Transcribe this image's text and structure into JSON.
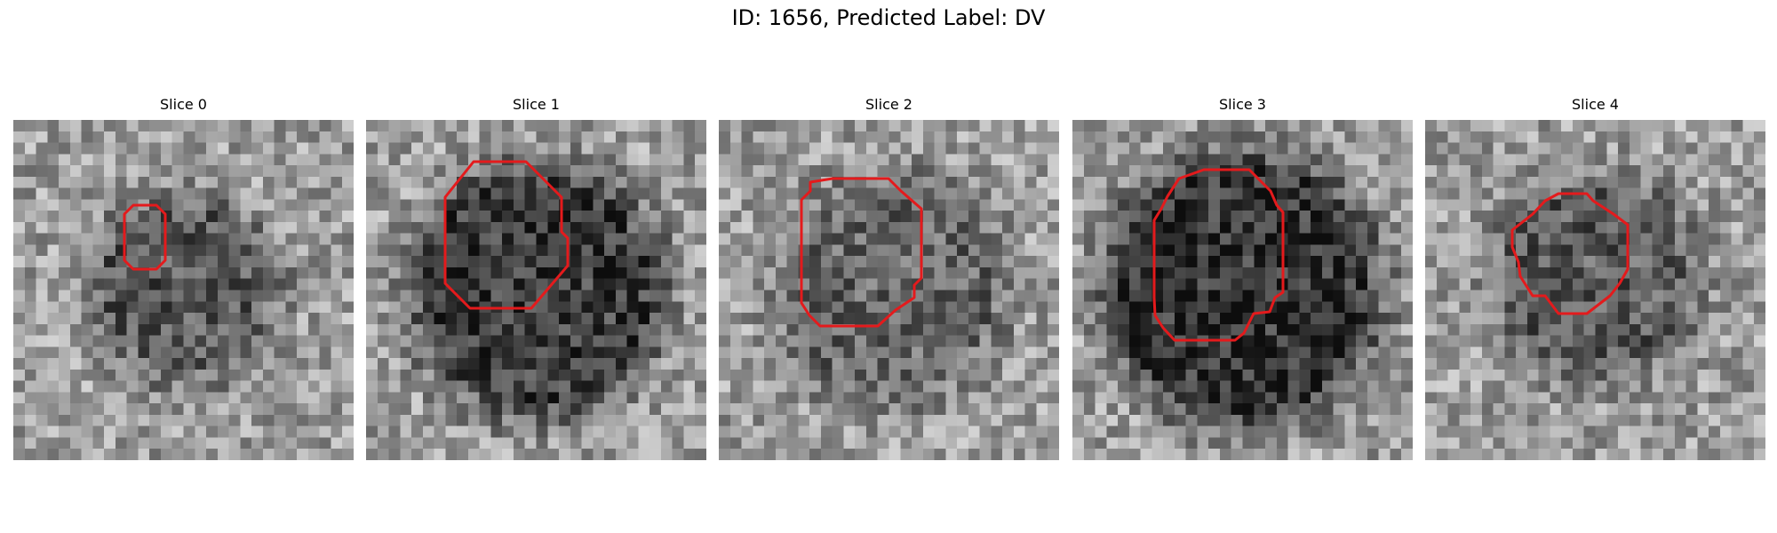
{
  "figure": {
    "title": "ID: 1656, Predicted Label: DV",
    "outline_color": "#e41a1c",
    "colormap": "gray"
  },
  "slices": [
    {
      "title": "Slice 0"
    },
    {
      "title": "Slice 1"
    },
    {
      "title": "Slice 2"
    },
    {
      "title": "Slice 3"
    },
    {
      "title": "Slice 4"
    }
  ]
}
